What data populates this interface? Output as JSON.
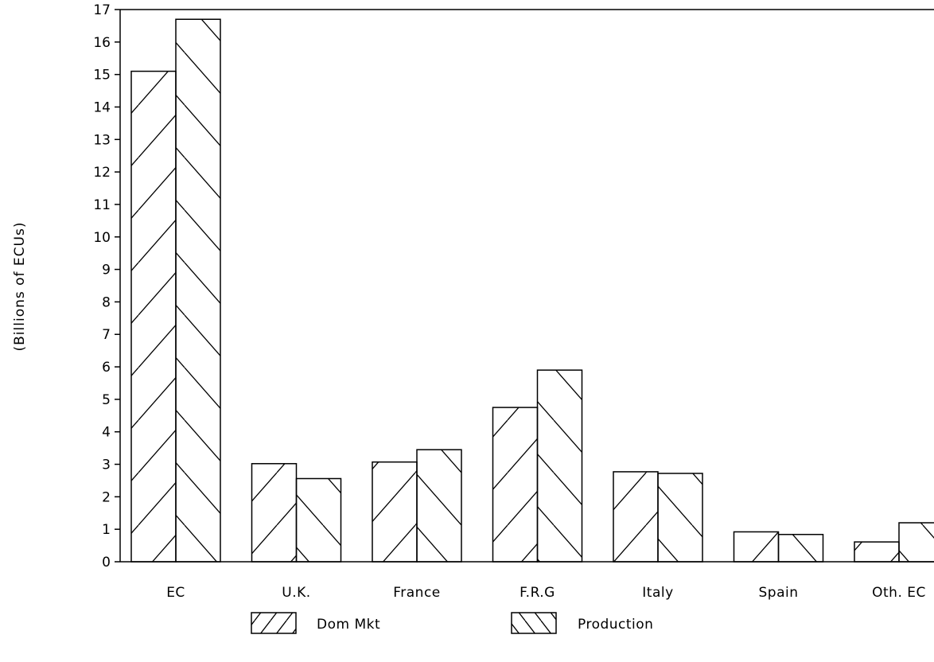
{
  "chart_data": {
    "type": "bar",
    "categories": [
      "EC",
      "U.K.",
      "France",
      "F.R.G",
      "Italy",
      "Spain",
      "Oth. EC"
    ],
    "series": [
      {
        "name": "Dom Mkt",
        "values": [
          15.1,
          3.02,
          3.07,
          4.75,
          2.77,
          0.92,
          0.61
        ]
      },
      {
        "name": "Production",
        "values": [
          16.7,
          2.56,
          3.45,
          5.9,
          2.72,
          0.84,
          1.2
        ]
      }
    ],
    "ylabel": "(Billions of ECUs)",
    "ylim": [
      0,
      17
    ],
    "yticks": [
      "0",
      "1",
      "2",
      "3",
      "4",
      "5",
      "6",
      "7",
      "8",
      "9",
      "10",
      "11",
      "12",
      "13",
      "14",
      "15",
      "16",
      "17"
    ],
    "grid": false,
    "legend_position": "bottom",
    "patterns": {
      "Dom Mkt": "forward-hatch",
      "Production": "back-hatch"
    }
  }
}
